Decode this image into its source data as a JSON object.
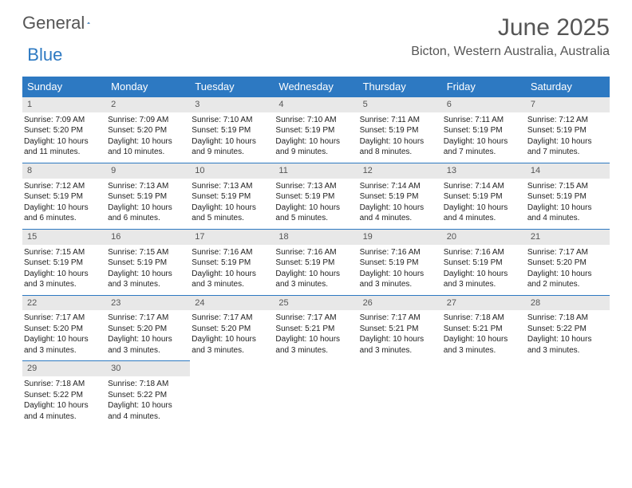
{
  "logo": {
    "text_general": "General",
    "text_blue": "Blue"
  },
  "title": "June 2025",
  "location": "Bicton, Western Australia, Australia",
  "colors": {
    "header_bg": "#2d79c2",
    "header_text": "#ffffff",
    "daynum_bg": "#e8e8e8",
    "daynum_border": "#2d79c2",
    "body_text": "#222222",
    "muted_text": "#555555"
  },
  "day_headers": [
    "Sunday",
    "Monday",
    "Tuesday",
    "Wednesday",
    "Thursday",
    "Friday",
    "Saturday"
  ],
  "days": [
    {
      "n": 1,
      "sunrise": "7:09 AM",
      "sunset": "5:20 PM",
      "daylight": "10 hours and 11 minutes."
    },
    {
      "n": 2,
      "sunrise": "7:09 AM",
      "sunset": "5:20 PM",
      "daylight": "10 hours and 10 minutes."
    },
    {
      "n": 3,
      "sunrise": "7:10 AM",
      "sunset": "5:19 PM",
      "daylight": "10 hours and 9 minutes."
    },
    {
      "n": 4,
      "sunrise": "7:10 AM",
      "sunset": "5:19 PM",
      "daylight": "10 hours and 9 minutes."
    },
    {
      "n": 5,
      "sunrise": "7:11 AM",
      "sunset": "5:19 PM",
      "daylight": "10 hours and 8 minutes."
    },
    {
      "n": 6,
      "sunrise": "7:11 AM",
      "sunset": "5:19 PM",
      "daylight": "10 hours and 7 minutes."
    },
    {
      "n": 7,
      "sunrise": "7:12 AM",
      "sunset": "5:19 PM",
      "daylight": "10 hours and 7 minutes."
    },
    {
      "n": 8,
      "sunrise": "7:12 AM",
      "sunset": "5:19 PM",
      "daylight": "10 hours and 6 minutes."
    },
    {
      "n": 9,
      "sunrise": "7:13 AM",
      "sunset": "5:19 PM",
      "daylight": "10 hours and 6 minutes."
    },
    {
      "n": 10,
      "sunrise": "7:13 AM",
      "sunset": "5:19 PM",
      "daylight": "10 hours and 5 minutes."
    },
    {
      "n": 11,
      "sunrise": "7:13 AM",
      "sunset": "5:19 PM",
      "daylight": "10 hours and 5 minutes."
    },
    {
      "n": 12,
      "sunrise": "7:14 AM",
      "sunset": "5:19 PM",
      "daylight": "10 hours and 4 minutes."
    },
    {
      "n": 13,
      "sunrise": "7:14 AM",
      "sunset": "5:19 PM",
      "daylight": "10 hours and 4 minutes."
    },
    {
      "n": 14,
      "sunrise": "7:15 AM",
      "sunset": "5:19 PM",
      "daylight": "10 hours and 4 minutes."
    },
    {
      "n": 15,
      "sunrise": "7:15 AM",
      "sunset": "5:19 PM",
      "daylight": "10 hours and 3 minutes."
    },
    {
      "n": 16,
      "sunrise": "7:15 AM",
      "sunset": "5:19 PM",
      "daylight": "10 hours and 3 minutes."
    },
    {
      "n": 17,
      "sunrise": "7:16 AM",
      "sunset": "5:19 PM",
      "daylight": "10 hours and 3 minutes."
    },
    {
      "n": 18,
      "sunrise": "7:16 AM",
      "sunset": "5:19 PM",
      "daylight": "10 hours and 3 minutes."
    },
    {
      "n": 19,
      "sunrise": "7:16 AM",
      "sunset": "5:19 PM",
      "daylight": "10 hours and 3 minutes."
    },
    {
      "n": 20,
      "sunrise": "7:16 AM",
      "sunset": "5:19 PM",
      "daylight": "10 hours and 3 minutes."
    },
    {
      "n": 21,
      "sunrise": "7:17 AM",
      "sunset": "5:20 PM",
      "daylight": "10 hours and 2 minutes."
    },
    {
      "n": 22,
      "sunrise": "7:17 AM",
      "sunset": "5:20 PM",
      "daylight": "10 hours and 3 minutes."
    },
    {
      "n": 23,
      "sunrise": "7:17 AM",
      "sunset": "5:20 PM",
      "daylight": "10 hours and 3 minutes."
    },
    {
      "n": 24,
      "sunrise": "7:17 AM",
      "sunset": "5:20 PM",
      "daylight": "10 hours and 3 minutes."
    },
    {
      "n": 25,
      "sunrise": "7:17 AM",
      "sunset": "5:21 PM",
      "daylight": "10 hours and 3 minutes."
    },
    {
      "n": 26,
      "sunrise": "7:17 AM",
      "sunset": "5:21 PM",
      "daylight": "10 hours and 3 minutes."
    },
    {
      "n": 27,
      "sunrise": "7:18 AM",
      "sunset": "5:21 PM",
      "daylight": "10 hours and 3 minutes."
    },
    {
      "n": 28,
      "sunrise": "7:18 AM",
      "sunset": "5:22 PM",
      "daylight": "10 hours and 3 minutes."
    },
    {
      "n": 29,
      "sunrise": "7:18 AM",
      "sunset": "5:22 PM",
      "daylight": "10 hours and 4 minutes."
    },
    {
      "n": 30,
      "sunrise": "7:18 AM",
      "sunset": "5:22 PM",
      "daylight": "10 hours and 4 minutes."
    }
  ],
  "labels": {
    "sunrise": "Sunrise:",
    "sunset": "Sunset:",
    "daylight": "Daylight:"
  },
  "first_day_column": 0,
  "trailing_empty": 5
}
